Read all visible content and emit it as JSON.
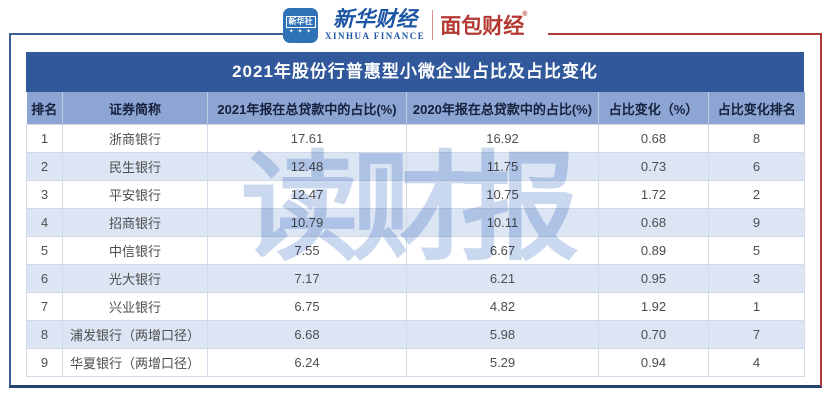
{
  "brand": {
    "agency_icon_text": "新华社",
    "agency_icon_stars": "✦ ✦ ✦",
    "xinhua_finance_zh": "新华财经",
    "xinhua_finance_en": "XINHUA FINANCE",
    "bread_finance": "面包财经",
    "bread_reg_mark": "®"
  },
  "watermark": "读财报",
  "chart_data": {
    "type": "table",
    "title": "2021年股份行普惠型小微企业占比及占比变化",
    "columns": [
      "排名",
      "证券简称",
      "2021年报在总贷款中的占比(%)",
      "2020年报在总贷款中的占比(%)",
      "占比变化（%）",
      "占比变化排名"
    ],
    "rows": [
      [
        "1",
        "浙商银行",
        "17.61",
        "16.92",
        "0.68",
        "8"
      ],
      [
        "2",
        "民生银行",
        "12.48",
        "11.75",
        "0.73",
        "6"
      ],
      [
        "3",
        "平安银行",
        "12.47",
        "10.75",
        "1.72",
        "2"
      ],
      [
        "4",
        "招商银行",
        "10.79",
        "10.11",
        "0.68",
        "9"
      ],
      [
        "5",
        "中信银行",
        "7.55",
        "6.67",
        "0.89",
        "5"
      ],
      [
        "6",
        "光大银行",
        "7.17",
        "6.21",
        "0.95",
        "3"
      ],
      [
        "7",
        "兴业银行",
        "6.75",
        "4.82",
        "1.92",
        "1"
      ],
      [
        "8",
        "浦发银行（两增口径）",
        "6.68",
        "5.98",
        "0.70",
        "7"
      ],
      [
        "9",
        "华夏银行（两增口径）",
        "6.24",
        "5.29",
        "0.94",
        "4"
      ]
    ]
  },
  "colors": {
    "title_bar": "#31589B",
    "header_row": "#8CA5D3",
    "row_alt": "#DCE5F4",
    "frame_left": "#3D6092",
    "frame_right": "#AC3C3C",
    "frame_bottom": "#27426B",
    "brand_blue": "#1D55A5",
    "brand_red": "#B43832",
    "watermark_blue": "#9DB8E2"
  }
}
